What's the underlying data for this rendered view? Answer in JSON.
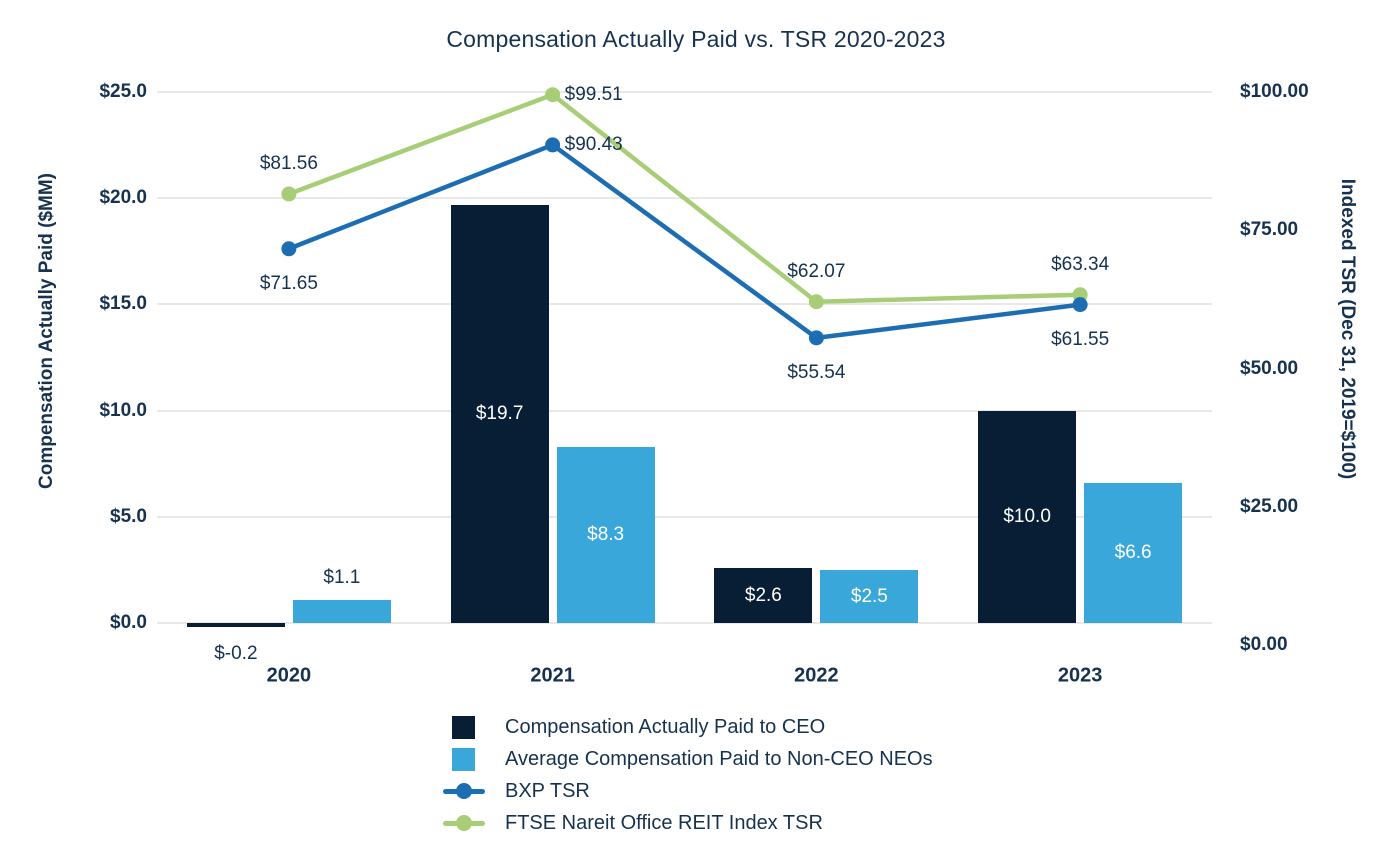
{
  "title": "Compensation Actually Paid vs. TSR 2020-2023",
  "colors": {
    "navy_bar": "#081e35",
    "light_blue_bar": "#3aa7db",
    "bxp_line": "#1d6db2",
    "ftse_line": "#a7ce77",
    "text": "#16324f",
    "grid": "#e8e8e8",
    "bar_label_inside": "#ffffff"
  },
  "chart_data": {
    "type": "bar",
    "subtype": "combo-bar-line-dual-axis",
    "categories": [
      "2020",
      "2021",
      "2022",
      "2023"
    ],
    "bar_series": [
      {
        "name": "Compensation Actually Paid to CEO",
        "values": [
          -0.2,
          19.7,
          2.6,
          10.0
        ],
        "labels": [
          "$-0.2",
          "$19.7",
          "$2.6",
          "$10.0"
        ],
        "color": "#081e35",
        "axis": "left"
      },
      {
        "name": "Average Compensation Paid to Non-CEO NEOs",
        "values": [
          1.1,
          8.3,
          2.5,
          6.6
        ],
        "labels": [
          "$1.1",
          "$8.3",
          "$2.5",
          "$6.6"
        ],
        "color": "#3aa7db",
        "axis": "left"
      }
    ],
    "line_series": [
      {
        "name": "BXP TSR",
        "values": [
          71.65,
          90.43,
          55.54,
          61.55
        ],
        "labels": [
          "$71.65",
          "$90.43",
          "$55.54",
          "$61.55"
        ],
        "label_pos": [
          "below",
          "right",
          "below",
          "below"
        ],
        "color": "#1d6db2",
        "axis": "right"
      },
      {
        "name": "FTSE Nareit Office REIT Index TSR",
        "values": [
          81.56,
          99.51,
          62.07,
          63.34
        ],
        "labels": [
          "$81.56",
          "$99.51",
          "$62.07",
          "$63.34"
        ],
        "label_pos": [
          "above",
          "right",
          "above",
          "above"
        ],
        "color": "#a7ce77",
        "axis": "right"
      }
    ],
    "left_axis": {
      "title": "Compensation Actually Paid ($MM)",
      "ticks": [
        "$0.0",
        "$5.0",
        "$10.0",
        "$15.0",
        "$20.0",
        "$25.0"
      ],
      "min": 0,
      "max": 25,
      "tick_step": 5
    },
    "right_axis": {
      "title": "Indexed TSR (Dec 31, 2019=$100)",
      "ticks": [
        "$0.00",
        "$25.00",
        "$50.00",
        "$75.00",
        "$100.00"
      ],
      "min": 0,
      "max": 100,
      "tick_step": 25
    },
    "grid": "horizontal-only",
    "legend_position": "bottom-center-left-aligned"
  },
  "legend": {
    "items": [
      {
        "label": "Compensation Actually Paid to CEO",
        "swatch": "square",
        "color": "#081e35"
      },
      {
        "label": "Average Compensation Paid to Non-CEO NEOs",
        "swatch": "square",
        "color": "#3aa7db"
      },
      {
        "label": "BXP TSR",
        "swatch": "line-dot",
        "color": "#1d6db2"
      },
      {
        "label": "FTSE Nareit Office REIT Index TSR",
        "swatch": "line-dot",
        "color": "#a7ce77"
      }
    ]
  }
}
